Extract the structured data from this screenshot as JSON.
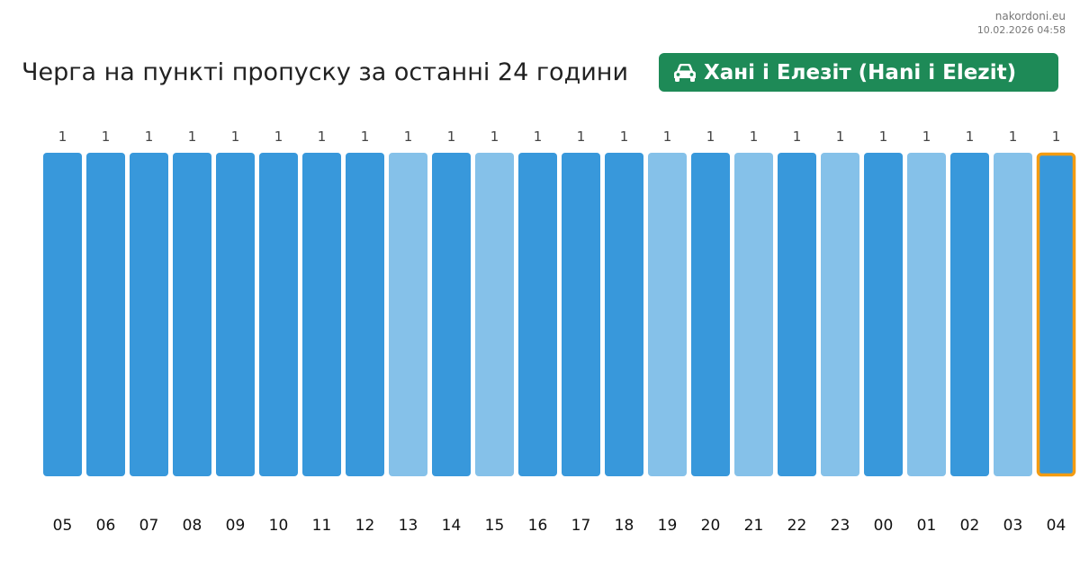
{
  "header": {
    "site": "nakordoni.eu",
    "timestamp": "10.02.2026 04:58",
    "title": "Черга на пункті пропуску за останні 24 години",
    "checkpoint_label": "Хані і Елезіт (Hani i Elezit)",
    "checkpoint_icon": "car-icon"
  },
  "colors": {
    "bar_dark": "#3898db",
    "bar_light": "#85c1e9",
    "highlight_border": "#f39c12",
    "badge_bg": "#1e8a57"
  },
  "chart_data": {
    "type": "bar",
    "title": "Черга на пункті пропуску за останні 24 години",
    "xlabel": "",
    "ylabel": "",
    "categories": [
      "05",
      "06",
      "07",
      "08",
      "09",
      "10",
      "11",
      "12",
      "13",
      "14",
      "15",
      "16",
      "17",
      "18",
      "19",
      "20",
      "21",
      "22",
      "23",
      "00",
      "01",
      "02",
      "03",
      "04"
    ],
    "values": [
      1,
      1,
      1,
      1,
      1,
      1,
      1,
      1,
      1,
      1,
      1,
      1,
      1,
      1,
      1,
      1,
      1,
      1,
      1,
      1,
      1,
      1,
      1,
      1
    ],
    "bar_shade": [
      "dark",
      "dark",
      "dark",
      "dark",
      "dark",
      "dark",
      "dark",
      "dark",
      "light",
      "dark",
      "light",
      "dark",
      "dark",
      "dark",
      "light",
      "dark",
      "light",
      "dark",
      "light",
      "dark",
      "light",
      "dark",
      "light",
      "dark"
    ],
    "highlighted_category": "04",
    "ylim": [
      0,
      1
    ],
    "grid": false,
    "legend": "none"
  }
}
